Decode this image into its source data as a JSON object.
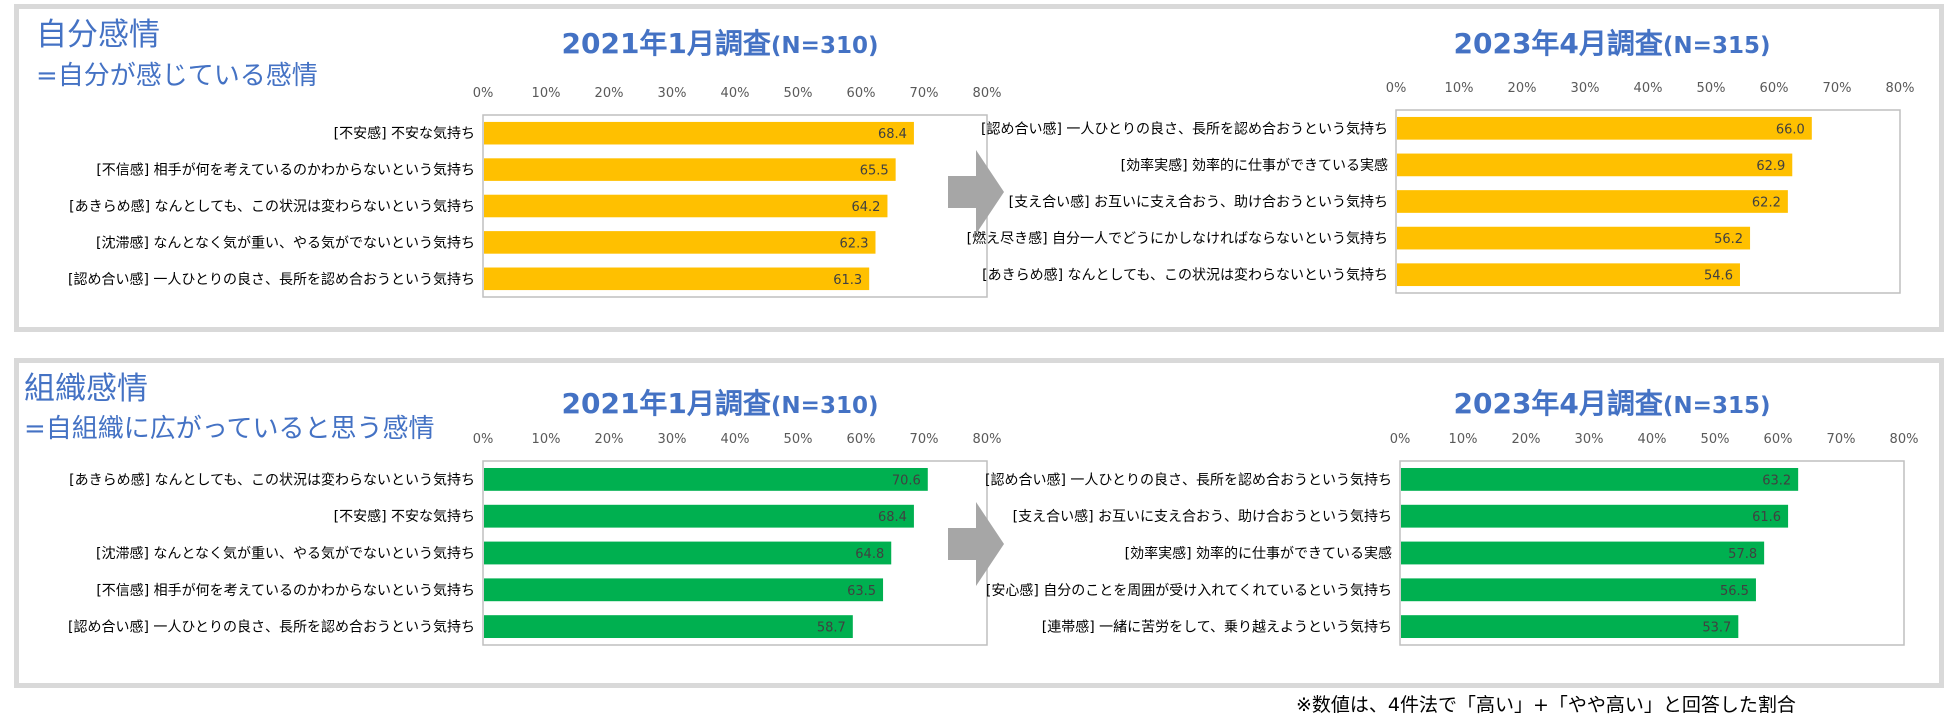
{
  "footnote": "※数値は、4件法で「高い」+「やや高い」と回答した割合",
  "colors": {
    "accent": "#4472c4",
    "bar_self": "#ffc000",
    "bar_org": "#00b050",
    "arrow": "#a6a6a6",
    "border": "#d9d9d9"
  },
  "sections": [
    {
      "title": "自分感情",
      "subtitle": "=自分が感じている感情",
      "bar_color": "#ffc000",
      "charts": [
        {
          "title": "2021年1月調査",
          "n_label": "(N=310)"
        },
        {
          "title": "2023年4月調査",
          "n_label": "(N=315)"
        }
      ]
    },
    {
      "title": "組織感情",
      "subtitle": "=自組織に広がっていると思う感情",
      "bar_color": "#00b050",
      "charts": [
        {
          "title": "2021年1月調査",
          "n_label": "(N=310)"
        },
        {
          "title": "2023年4月調査",
          "n_label": "(N=315)"
        }
      ]
    }
  ],
  "chart_data": [
    {
      "type": "bar",
      "orientation": "horizontal",
      "title": "2021年1月調査(N=310)",
      "categories": [
        "[不安感] 不安な気持ち",
        "[不信感] 相手が何を考えているのかわからないという気持ち",
        "[あきらめ感] なんとしても、この状況は変わらないという気持ち",
        "[沈滞感] なんとなく気が重い、やる気がでないという気持ち",
        "[認め合い感] 一人ひとりの良さ、長所を認め合おうという気持ち"
      ],
      "values": [
        68.4,
        65.5,
        64.2,
        62.3,
        61.3
      ],
      "xlim": [
        0,
        80
      ],
      "xticks": [
        "0%",
        "10%",
        "20%",
        "30%",
        "40%",
        "50%",
        "60%",
        "70%",
        "80%"
      ],
      "tick_position": "top",
      "grid": false,
      "legend": "none",
      "color": "#ffc000"
    },
    {
      "type": "bar",
      "orientation": "horizontal",
      "title": "2023年4月調査(N=315)",
      "categories": [
        "[認め合い感] 一人ひとりの良さ、長所を認め合おうという気持ち",
        "[効率実感] 効率的に仕事ができている実感",
        "[支え合い感] お互いに支え合おう、助け合おうという気持ち",
        "[燃え尽き感] 自分一人でどうにかしなければならないという気持ち",
        "[あきらめ感] なんとしても、この状況は変わらないという気持ち"
      ],
      "values": [
        66.0,
        62.9,
        62.2,
        56.2,
        54.6
      ],
      "xlim": [
        0,
        80
      ],
      "xticks": [
        "0%",
        "10%",
        "20%",
        "30%",
        "40%",
        "50%",
        "60%",
        "70%",
        "80%"
      ],
      "tick_position": "top",
      "grid": false,
      "legend": "none",
      "color": "#ffc000"
    },
    {
      "type": "bar",
      "orientation": "horizontal",
      "title": "2021年1月調査(N=310)",
      "categories": [
        "[あきらめ感] なんとしても、この状況は変わらないという気持ち",
        "[不安感] 不安な気持ち",
        "[沈滞感] なんとなく気が重い、やる気がでないという気持ち",
        "[不信感] 相手が何を考えているのかわからないという気持ち",
        "[認め合い感] 一人ひとりの良さ、長所を認め合おうという気持ち"
      ],
      "values": [
        70.6,
        68.4,
        64.8,
        63.5,
        58.7
      ],
      "xlim": [
        0,
        80
      ],
      "xticks": [
        "0%",
        "10%",
        "20%",
        "30%",
        "40%",
        "50%",
        "60%",
        "70%",
        "80%"
      ],
      "tick_position": "top",
      "grid": false,
      "legend": "none",
      "color": "#00b050"
    },
    {
      "type": "bar",
      "orientation": "horizontal",
      "title": "2023年4月調査(N=315)",
      "categories": [
        "[認め合い感] 一人ひとりの良さ、長所を認め合おうという気持ち",
        "[支え合い感] お互いに支え合おう、助け合おうという気持ち",
        "[効率実感] 効率的に仕事ができている実感",
        "[安心感] 自分のことを周囲が受け入れてくれているという気持ち",
        "[連帯感] 一緒に苦労をして、乗り越えようという気持ち"
      ],
      "values": [
        63.2,
        61.6,
        57.8,
        56.5,
        53.7
      ],
      "xlim": [
        0,
        80
      ],
      "xticks": [
        "0%",
        "10%",
        "20%",
        "30%",
        "40%",
        "50%",
        "60%",
        "70%",
        "80%"
      ],
      "tick_position": "top",
      "grid": false,
      "legend": "none",
      "color": "#00b050"
    }
  ]
}
